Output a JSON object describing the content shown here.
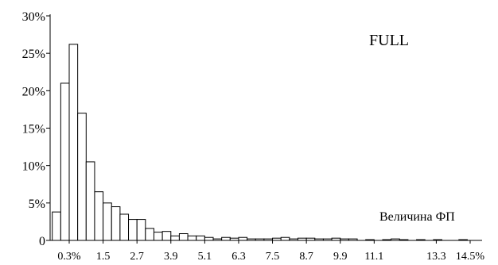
{
  "chart_data": {
    "type": "bar",
    "legend": "FULL",
    "xlabel": "Величина ФП",
    "ylabel": "",
    "ylim": [
      0,
      30
    ],
    "y_ticks": [
      {
        "value": 0,
        "label": "0"
      },
      {
        "value": 5,
        "label": "5%"
      },
      {
        "value": 10,
        "label": "10%"
      },
      {
        "value": 15,
        "label": "15%"
      },
      {
        "value": 20,
        "label": "20%"
      },
      {
        "value": 25,
        "label": "25%"
      },
      {
        "value": 30,
        "label": "30%"
      }
    ],
    "x_ticks": [
      {
        "value": 0.3,
        "label": "0.3%"
      },
      {
        "value": 1.5,
        "label": "1.5"
      },
      {
        "value": 2.7,
        "label": "2.7"
      },
      {
        "value": 3.9,
        "label": "3.9"
      },
      {
        "value": 5.1,
        "label": "5.1"
      },
      {
        "value": 6.3,
        "label": "6.3"
      },
      {
        "value": 7.5,
        "label": "7.5"
      },
      {
        "value": 8.7,
        "label": "8.7"
      },
      {
        "value": 9.9,
        "label": "9.9"
      },
      {
        "value": 11.1,
        "label": "11.1"
      },
      {
        "value": 13.3,
        "label": "13.3"
      },
      {
        "value": 14.5,
        "label": "14.5%"
      }
    ],
    "bin_width": 0.3,
    "x_start": -0.3,
    "values": [
      3.8,
      21.0,
      26.2,
      17.0,
      10.5,
      6.5,
      5.0,
      4.5,
      3.5,
      2.8,
      2.8,
      1.6,
      1.1,
      1.2,
      0.6,
      0.9,
      0.6,
      0.6,
      0.4,
      0.2,
      0.4,
      0.3,
      0.4,
      0.2,
      0.2,
      0.2,
      0.3,
      0.4,
      0.2,
      0.3,
      0.3,
      0.2,
      0.2,
      0.3,
      0.2,
      0.2,
      0,
      0.1,
      0,
      0.1,
      0.2,
      0.1,
      0,
      0.1,
      0,
      0.1,
      0,
      0,
      0.1,
      0,
      0,
      0,
      0,
      0,
      0,
      0,
      0.1,
      0,
      0,
      0,
      0.1,
      0,
      0,
      0,
      0,
      0,
      0,
      0,
      0,
      0,
      0,
      0,
      0,
      0,
      0,
      0,
      0,
      0,
      0,
      0,
      0,
      0,
      0,
      0,
      0,
      0,
      0,
      0,
      0,
      0,
      0.1,
      0,
      0,
      0,
      0,
      0,
      0,
      0.1,
      0,
      0,
      0,
      0,
      0,
      0,
      0.1,
      0,
      0,
      0,
      0,
      0,
      0,
      0.1,
      0,
      0,
      0,
      0,
      0,
      0,
      0,
      0,
      0.1,
      0,
      0,
      0,
      0,
      0,
      0,
      0,
      0,
      0,
      0,
      0,
      0,
      0,
      0,
      0,
      0,
      0,
      0,
      0,
      0.1,
      0,
      0,
      0,
      0,
      0,
      0,
      0,
      0.1,
      0,
      0,
      0,
      0,
      0,
      0,
      0,
      0,
      0,
      0.1
    ]
  }
}
